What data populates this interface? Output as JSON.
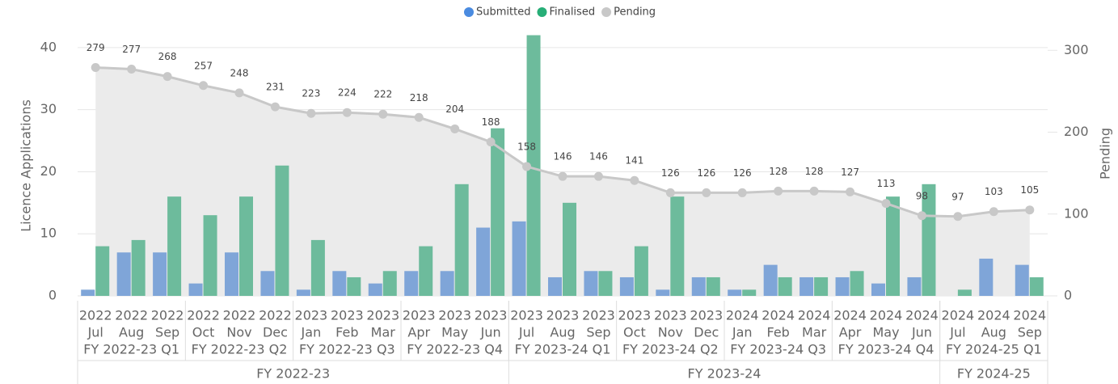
{
  "chart_data": {
    "type": "combo",
    "legend_position": "top",
    "y_label": "Licence Applications",
    "y2_label": "Pending",
    "years": [
      "2022",
      "2022",
      "2022",
      "2022",
      "2022",
      "2022",
      "2023",
      "2023",
      "2023",
      "2023",
      "2023",
      "2023",
      "2023",
      "2023",
      "2023",
      "2023",
      "2023",
      "2023",
      "2024",
      "2024",
      "2024",
      "2024",
      "2024",
      "2024",
      "2024",
      "2024",
      "2024"
    ],
    "categories": [
      "Jul",
      "Aug",
      "Sep",
      "Oct",
      "Nov",
      "Dec",
      "Jan",
      "Feb",
      "Mar",
      "Apr",
      "May",
      "Jun",
      "Jul",
      "Aug",
      "Sep",
      "Oct",
      "Nov",
      "Dec",
      "Jan",
      "Feb",
      "Mar",
      "Apr",
      "May",
      "Jun",
      "Jul",
      "Aug",
      "Sep"
    ],
    "quarters": [
      "FY 2022-23 Q1",
      "FY 2022-23 Q1",
      "FY 2022-23 Q1",
      "FY 2022-23 Q2",
      "FY 2022-23 Q2",
      "FY 2022-23 Q2",
      "FY 2022-23 Q3",
      "FY 2022-23 Q3",
      "FY 2022-23 Q3",
      "FY 2022-23 Q4",
      "FY 2022-23 Q4",
      "FY 2022-23 Q4",
      "FY 2023-24 Q1",
      "FY 2023-24 Q1",
      "FY 2023-24 Q1",
      "FY 2023-24 Q2",
      "FY 2023-24 Q2",
      "FY 2023-24 Q2",
      "FY 2023-24 Q3",
      "FY 2023-24 Q3",
      "FY 2023-24 Q3",
      "FY 2023-24 Q4",
      "FY 2023-24 Q4",
      "FY 2023-24 Q4",
      "FY 2024-25 Q1",
      "FY 2024-25 Q1",
      "FY 2024-25 Q1"
    ],
    "fiscal_years": [
      "FY 2022-23",
      "FY 2022-23",
      "FY 2022-23",
      "FY 2022-23",
      "FY 2022-23",
      "FY 2022-23",
      "FY 2022-23",
      "FY 2022-23",
      "FY 2022-23",
      "FY 2022-23",
      "FY 2022-23",
      "FY 2022-23",
      "FY 2023-24",
      "FY 2023-24",
      "FY 2023-24",
      "FY 2023-24",
      "FY 2023-24",
      "FY 2023-24",
      "FY 2023-24",
      "FY 2023-24",
      "FY 2023-24",
      "FY 2023-24",
      "FY 2023-24",
      "FY 2023-24",
      "FY 2024-25",
      "FY 2024-25",
      "FY 2024-25"
    ],
    "series": [
      {
        "name": "Submitted",
        "color": "#7fa5d8",
        "legend_color": "#4a8be0",
        "kind": "bar",
        "values": [
          1,
          7,
          7,
          2,
          7,
          4,
          1,
          4,
          2,
          4,
          4,
          11,
          12,
          3,
          4,
          3,
          1,
          3,
          1,
          5,
          3,
          3,
          2,
          3,
          null,
          6,
          5
        ]
      },
      {
        "name": "Finalised",
        "color": "#6dbb9c",
        "legend_color": "#27ae77",
        "kind": "bar",
        "values": [
          8,
          9,
          16,
          13,
          16,
          21,
          9,
          3,
          4,
          8,
          18,
          27,
          42,
          15,
          4,
          8,
          16,
          3,
          1,
          3,
          3,
          4,
          16,
          18,
          1,
          null,
          3
        ]
      },
      {
        "name": "Pending",
        "color": "#c8c8c8",
        "legend_color": "#c8c8c8",
        "kind": "line",
        "axis": "y2",
        "values": [
          279,
          277,
          268,
          257,
          248,
          231,
          223,
          224,
          222,
          218,
          204,
          188,
          158,
          146,
          146,
          141,
          126,
          126,
          126,
          128,
          128,
          127,
          113,
          98,
          97,
          103,
          105
        ]
      }
    ],
    "ylim": [
      0,
      42.2
    ],
    "yticks": [
      0,
      10,
      20,
      30,
      40
    ],
    "y2lim": [
      0,
      320
    ],
    "y2ticks": [
      0,
      100,
      200,
      300
    ],
    "grid": true
  }
}
